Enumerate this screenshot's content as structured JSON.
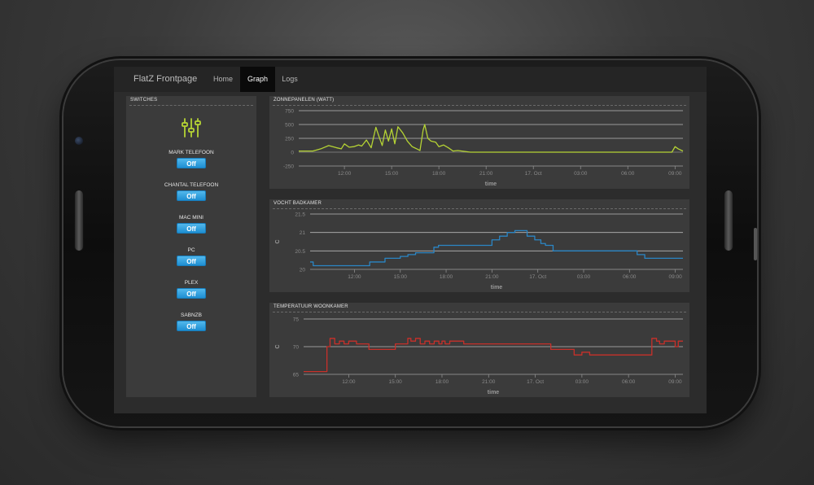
{
  "app": {
    "brand": "FlatZ Frontpage",
    "nav": [
      {
        "label": "Home",
        "active": false
      },
      {
        "label": "Graph",
        "active": true
      },
      {
        "label": "Logs",
        "active": false
      }
    ]
  },
  "switches": {
    "title": "SWITCHES",
    "icon": "sliders-icon",
    "items": [
      {
        "label": "MARK TELEFOON",
        "state": "Off"
      },
      {
        "label": "CHANTAL TELEFOON",
        "state": "Off"
      },
      {
        "label": "MAC MINI",
        "state": "Off"
      },
      {
        "label": "PC",
        "state": "Off"
      },
      {
        "label": "PLEX",
        "state": "Off"
      },
      {
        "label": "SABNZB",
        "state": "Off"
      }
    ]
  },
  "colors": {
    "solar": "#b5d334",
    "humidity": "#2b86c5",
    "temperature": "#c8302a",
    "switch_on": "#2b9ee0"
  },
  "chart_data": [
    {
      "type": "line",
      "title": "ZONNEPANELEN (WATT)",
      "xlabel": "time",
      "ylabel": "",
      "yticks": [
        "750",
        "500",
        "250",
        "0",
        "-250"
      ],
      "ylim": [
        -250,
        750
      ],
      "xticks": [
        "12:00",
        "15:00",
        "18:00",
        "21:00",
        "17. Oct",
        "03:00",
        "06:00",
        "09:00"
      ],
      "xlim": [
        9.1,
        33.5
      ],
      "series": [
        {
          "color": "#b5d334",
          "x": [
            9.1,
            10,
            10.5,
            11,
            11.5,
            11.8,
            12,
            12.3,
            12.6,
            12.9,
            13.1,
            13.4,
            13.7,
            14,
            14.2,
            14.4,
            14.6,
            14.8,
            15,
            15.2,
            15.4,
            15.7,
            16,
            16.3,
            16.6,
            16.8,
            17,
            17.1,
            17.3,
            17.5,
            17.8,
            18,
            18.3,
            18.6,
            18.9,
            19.2,
            20,
            24,
            27,
            31,
            32.8,
            33,
            33.2,
            33.5
          ],
          "y": [
            20,
            20,
            60,
            120,
            80,
            60,
            150,
            90,
            100,
            130,
            110,
            220,
            80,
            450,
            280,
            120,
            400,
            200,
            420,
            150,
            460,
            350,
            200,
            100,
            60,
            30,
            400,
            500,
            250,
            200,
            180,
            100,
            130,
            80,
            20,
            30,
            0,
            0,
            0,
            0,
            0,
            100,
            60,
            20
          ]
        }
      ]
    },
    {
      "type": "line",
      "title": "VOCHT BADKAMER",
      "xlabel": "time",
      "ylabel": "C",
      "yticks": [
        "21.5",
        "21",
        "20.5",
        "20"
      ],
      "ylim": [
        20,
        21.5
      ],
      "xticks": [
        "12:00",
        "15:00",
        "18:00",
        "21:00",
        "17. Oct",
        "03:00",
        "06:00",
        "09:00"
      ],
      "xlim": [
        9.1,
        33.5
      ],
      "series": [
        {
          "color": "#2b86c5",
          "x": [
            9.1,
            9.3,
            10,
            12,
            13,
            14,
            14.8,
            15,
            15.5,
            16,
            16.3,
            16.8,
            17.2,
            17.5,
            18,
            18.3,
            19,
            20,
            21,
            21.5,
            22,
            22.5,
            23.3,
            23.8,
            24.2,
            24.5,
            25,
            25.7,
            26.5,
            27,
            30,
            30.5,
            31,
            33.5
          ],
          "y": [
            20.2,
            20.1,
            20.1,
            20.1,
            20.2,
            20.3,
            20.3,
            20.35,
            20.4,
            20.45,
            20.45,
            20.45,
            20.6,
            20.65,
            20.65,
            20.65,
            20.65,
            20.65,
            20.8,
            20.9,
            21.0,
            21.05,
            20.9,
            20.8,
            20.7,
            20.65,
            20.5,
            20.5,
            20.5,
            20.5,
            20.5,
            20.4,
            20.3,
            20.3
          ]
        }
      ]
    },
    {
      "type": "line",
      "title": "TEMPERATUUR WOONKAMER",
      "xlabel": "time",
      "ylabel": "C",
      "yticks": [
        "75",
        "70",
        "65"
      ],
      "ylim": [
        65,
        75
      ],
      "xticks": [
        "12:00",
        "15:00",
        "18:00",
        "21:00",
        "17. Oct",
        "03:00",
        "06:00",
        "09:00"
      ],
      "xlim": [
        9.1,
        33.5
      ],
      "series": [
        {
          "color": "#c8302a",
          "x": [
            9.1,
            10.3,
            10.6,
            10.8,
            11.1,
            11.4,
            11.7,
            12,
            12.5,
            13,
            13.3,
            14.5,
            15,
            15.5,
            15.8,
            16,
            16.3,
            16.6,
            16.9,
            17.2,
            17.5,
            17.8,
            18,
            18.2,
            18.5,
            19,
            19.4,
            20,
            21,
            23,
            25,
            26,
            26.5,
            27,
            27.5,
            30,
            31,
            31.5,
            31.8,
            32,
            32.3,
            32.8,
            33,
            33.2,
            33.5
          ],
          "y": [
            65.5,
            65.5,
            70,
            71.5,
            70.5,
            71,
            70.5,
            71,
            70.5,
            70.5,
            69.5,
            69.5,
            70.5,
            70.5,
            71.5,
            71,
            71.5,
            70.5,
            71,
            70.5,
            71,
            70.5,
            71,
            70.5,
            71,
            71,
            70.5,
            70.5,
            70.5,
            70.5,
            69.5,
            69.5,
            68.5,
            69,
            68.5,
            68.5,
            68.5,
            71.5,
            71,
            70.5,
            71,
            71,
            70,
            71,
            71
          ]
        }
      ]
    }
  ]
}
